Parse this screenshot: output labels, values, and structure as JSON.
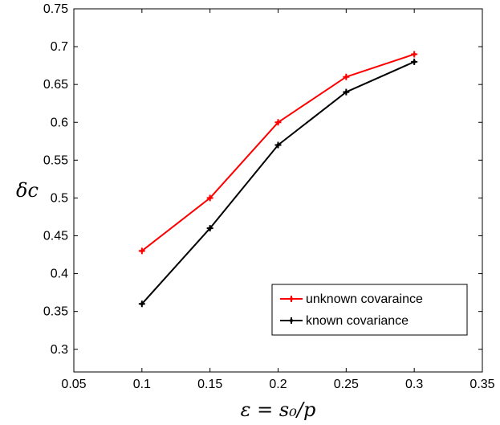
{
  "chart_data": {
    "type": "line",
    "xlabel": "ε = s₀/p",
    "ylabel": "δc",
    "xlim": [
      0.05,
      0.35
    ],
    "ylim": [
      0.27,
      0.75
    ],
    "xticks": [
      "0.05",
      "0.1",
      "0.15",
      "0.2",
      "0.25",
      "0.3",
      "0.35"
    ],
    "yticks": [
      "0.3",
      "0.35",
      "0.4",
      "0.45",
      "0.5",
      "0.55",
      "0.6",
      "0.65",
      "0.7",
      "0.75"
    ],
    "x": [
      0.1,
      0.15,
      0.2,
      0.25,
      0.3
    ],
    "series": [
      {
        "name": "unknown covaraince",
        "color": "#ff0000",
        "values": [
          0.43,
          0.5,
          0.6,
          0.66,
          0.69
        ]
      },
      {
        "name": "known covariance",
        "color": "#000000",
        "values": [
          0.36,
          0.46,
          0.57,
          0.64,
          0.68
        ]
      }
    ],
    "legend_position": "bottom-right",
    "grid": false
  }
}
